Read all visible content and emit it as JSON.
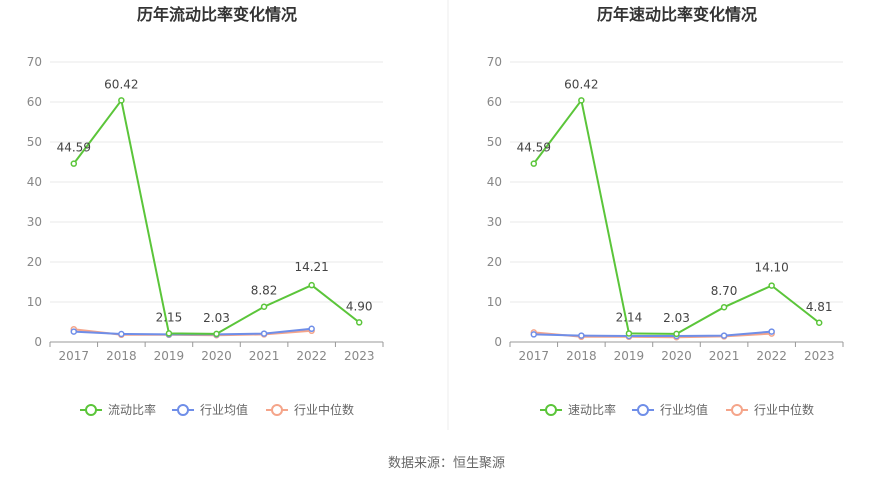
{
  "source_text": "数据来源：恒生聚源",
  "chart_data": [
    {
      "type": "line",
      "title": "历年流动比率变化情况",
      "categories": [
        "2017",
        "2018",
        "2019",
        "2020",
        "2021",
        "2022",
        "2023"
      ],
      "y_ticks": [
        "0",
        "10",
        "20",
        "30",
        "40",
        "50",
        "60",
        "70"
      ],
      "ylim": [
        0,
        70
      ],
      "grid": true,
      "legend_position": "bottom",
      "series": [
        {
          "name": "流动比率",
          "color": "#5bc53a",
          "values": [
            44.59,
            60.42,
            2.15,
            2.03,
            8.82,
            14.21,
            4.9
          ],
          "labels": [
            "44.59",
            "60.42",
            "2.15",
            "2.03",
            "8.82",
            "14.21",
            "4.90"
          ]
        },
        {
          "name": "行业均值",
          "color": "#6f8ee8",
          "values": [
            2.6,
            2.0,
            1.9,
            1.9,
            2.1,
            3.3,
            null
          ]
        },
        {
          "name": "行业中位数",
          "color": "#f5a58a",
          "values": [
            3.2,
            1.8,
            1.8,
            1.7,
            1.9,
            2.8,
            null
          ]
        }
      ]
    },
    {
      "type": "line",
      "title": "历年速动比率变化情况",
      "categories": [
        "2017",
        "2018",
        "2019",
        "2020",
        "2021",
        "2022",
        "2023"
      ],
      "y_ticks": [
        "0",
        "10",
        "20",
        "30",
        "40",
        "50",
        "60",
        "70"
      ],
      "ylim": [
        0,
        70
      ],
      "grid": true,
      "legend_position": "bottom",
      "series": [
        {
          "name": "速动比率",
          "color": "#5bc53a",
          "values": [
            44.59,
            60.42,
            2.14,
            2.03,
            8.7,
            14.1,
            4.81
          ],
          "labels": [
            "44.59",
            "60.42",
            "2.14",
            "2.03",
            "8.70",
            "14.10",
            "4.81"
          ]
        },
        {
          "name": "行业均值",
          "color": "#6f8ee8",
          "values": [
            1.9,
            1.6,
            1.5,
            1.5,
            1.6,
            2.6,
            null
          ]
        },
        {
          "name": "行业中位数",
          "color": "#f5a58a",
          "values": [
            2.4,
            1.3,
            1.3,
            1.2,
            1.4,
            2.1,
            null
          ]
        }
      ]
    }
  ]
}
